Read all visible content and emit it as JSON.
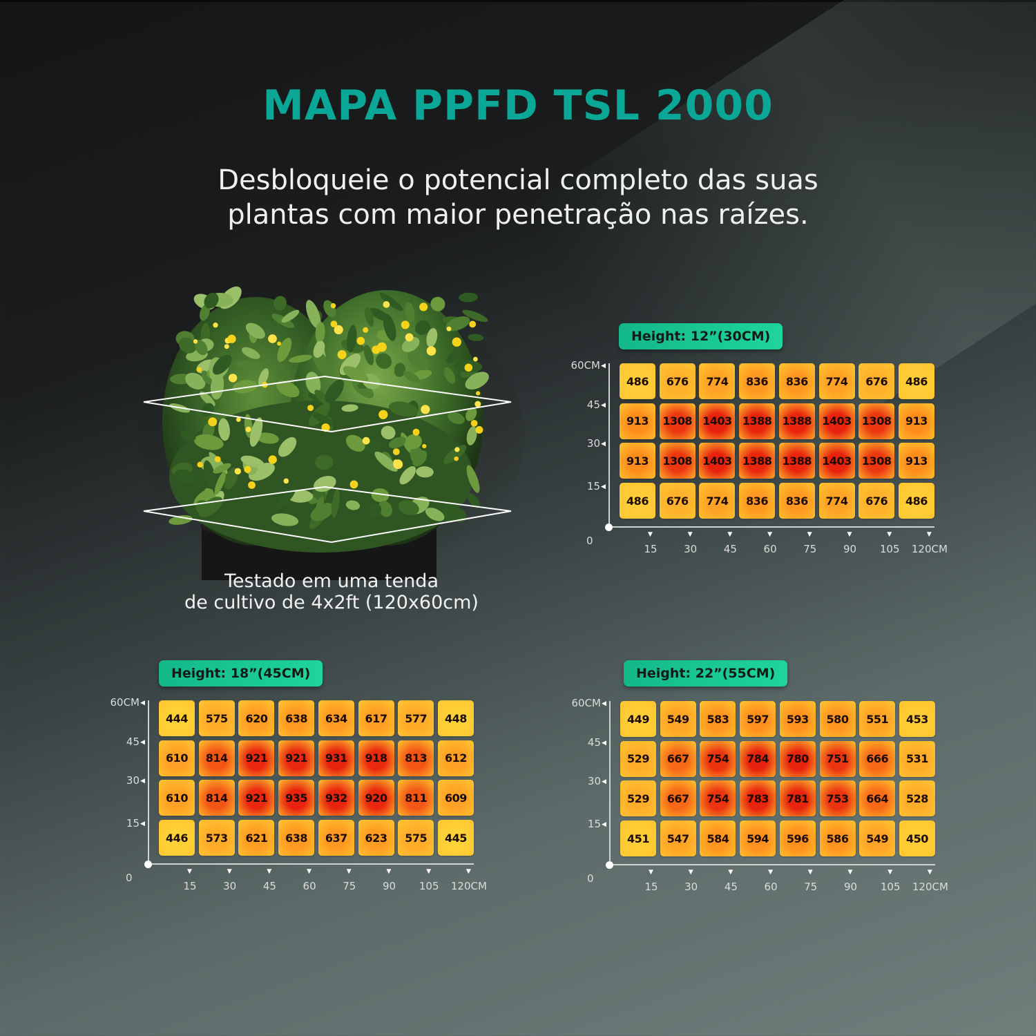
{
  "title": "MAPA PPFD TSL 2000",
  "subtitle_line1": "Desbloqueie o potencial completo das suas",
  "subtitle_line2": "plantas com maior penetração nas raízes.",
  "caption_line1": "Testado em uma tenda",
  "caption_line2": "de cultivo de 4x2ft (120x60cm)",
  "colors": {
    "title": "#0aa696",
    "tag": "#1ed59a",
    "low": "#ffd23a",
    "high": "#e8200c"
  },
  "chart_data": [
    {
      "type": "heatmap",
      "title": "Height: 12”(30CM)",
      "x_ticks": [
        "15",
        "30",
        "45",
        "60",
        "75",
        "90",
        "105",
        "120CM"
      ],
      "y_ticks": [
        "60CM",
        "45",
        "30",
        "15"
      ],
      "origin_label": "0",
      "rows": [
        [
          486,
          676,
          774,
          836,
          836,
          774,
          676,
          486
        ],
        [
          913,
          1308,
          1403,
          1388,
          1388,
          1403,
          1308,
          913
        ],
        [
          913,
          1308,
          1403,
          1388,
          1388,
          1403,
          1308,
          913
        ],
        [
          486,
          676,
          774,
          836,
          836,
          774,
          676,
          486
        ]
      ]
    },
    {
      "type": "heatmap",
      "title": "Height: 18”(45CM)",
      "x_ticks": [
        "15",
        "30",
        "45",
        "60",
        "75",
        "90",
        "105",
        "120CM"
      ],
      "y_ticks": [
        "60CM",
        "45",
        "30",
        "15"
      ],
      "origin_label": "0",
      "rows": [
        [
          444,
          575,
          620,
          638,
          634,
          617,
          577,
          448
        ],
        [
          610,
          814,
          921,
          921,
          931,
          918,
          813,
          612
        ],
        [
          610,
          814,
          921,
          935,
          932,
          920,
          811,
          609
        ],
        [
          446,
          573,
          621,
          638,
          637,
          623,
          575,
          445
        ]
      ]
    },
    {
      "type": "heatmap",
      "title": "Height: 22”(55CM)",
      "x_ticks": [
        "15",
        "30",
        "45",
        "60",
        "75",
        "90",
        "105",
        "120CM"
      ],
      "y_ticks": [
        "60CM",
        "45",
        "30",
        "15"
      ],
      "origin_label": "0",
      "rows": [
        [
          449,
          549,
          583,
          597,
          593,
          580,
          551,
          453
        ],
        [
          529,
          667,
          754,
          784,
          780,
          751,
          666,
          531
        ],
        [
          529,
          667,
          754,
          783,
          781,
          753,
          664,
          528
        ],
        [
          451,
          547,
          584,
          594,
          596,
          586,
          549,
          450
        ]
      ]
    }
  ]
}
